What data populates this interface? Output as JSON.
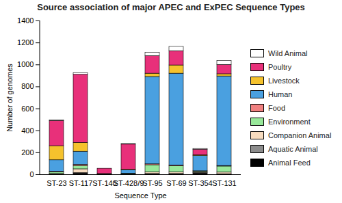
{
  "chart_data": {
    "type": "bar",
    "stacked": true,
    "title": "Source association of major APEC and ExPEC Sequence Types",
    "x_label": "Sequence Type",
    "y_label": "Number of genomes",
    "categories": [
      "ST-23",
      "ST-117",
      "ST-140",
      "ST-428/9",
      "ST-95",
      "ST-69",
      "ST-354",
      "ST-131"
    ],
    "series": [
      {
        "name": "Animal Feed",
        "color": "#000000",
        "values": [
          2,
          10,
          0,
          0,
          5,
          5,
          10,
          3
        ]
      },
      {
        "name": "Aquatic Animal",
        "color": "#8c8c8c",
        "values": [
          0,
          5,
          0,
          0,
          2,
          2,
          5,
          2
        ]
      },
      {
        "name": "Companion Animal",
        "color": "#f7dcc0",
        "values": [
          5,
          35,
          0,
          3,
          15,
          15,
          5,
          15
        ]
      },
      {
        "name": "Environment",
        "color": "#98e89a",
        "values": [
          15,
          30,
          0,
          5,
          65,
          55,
          10,
          55
        ]
      },
      {
        "name": "Food",
        "color": "#f08080",
        "values": [
          5,
          10,
          0,
          2,
          8,
          8,
          2,
          5
        ]
      },
      {
        "name": "Human",
        "color": "#4aa0e0",
        "values": [
          105,
          120,
          5,
          30,
          795,
          835,
          138,
          815
        ]
      },
      {
        "name": "Livestock",
        "color": "#f5c22d",
        "values": [
          128,
          80,
          2,
          5,
          30,
          75,
          8,
          20
        ]
      },
      {
        "name": "Poultry",
        "color": "#e8307a",
        "values": [
          230,
          620,
          48,
          230,
          160,
          130,
          50,
          85
        ]
      },
      {
        "name": "Wild Animal",
        "color": "#ffffff",
        "values": [
          5,
          15,
          0,
          5,
          30,
          40,
          7,
          35
        ]
      }
    ],
    "ylim": [
      0,
      1400
    ],
    "yticks": [
      0,
      200,
      400,
      600,
      800,
      1000,
      1200,
      1400
    ],
    "grid": false,
    "legend": "right"
  }
}
